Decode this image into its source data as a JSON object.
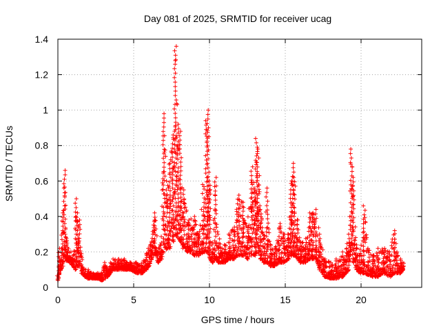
{
  "chart_data": {
    "type": "scatter",
    "title": "Day 081 of 2025, SRMTID for receiver ucag",
    "xlabel": "GPS time / hours",
    "ylabel": "SRMTID / TECUs",
    "xlim": [
      0,
      24
    ],
    "ylim": [
      0,
      1.4
    ],
    "xticks": [
      0,
      5,
      10,
      15,
      20
    ],
    "xtick_labels": [
      "0",
      "5",
      "10",
      "15",
      "20"
    ],
    "yticks": [
      0,
      0.2,
      0.4,
      0.6,
      0.8,
      1.0,
      1.2,
      1.4
    ],
    "ytick_labels": [
      "0",
      "0.2",
      "0.4",
      "0.6",
      "0.8",
      "1",
      "1.2",
      "1.4"
    ],
    "grid": true,
    "marker": "plus",
    "color": "#ff0000",
    "series": [
      {
        "name": "SRMTID",
        "envelope": {
          "x": [
            0.0,
            0.1,
            0.2,
            0.3,
            0.45,
            0.55,
            0.65,
            0.8,
            1.0,
            1.2,
            1.3,
            1.4,
            1.6,
            1.8,
            2.0,
            2.3,
            2.6,
            2.9,
            3.1,
            3.3,
            3.6,
            4.0,
            4.4,
            4.8,
            5.2,
            5.6,
            5.8,
            6.0,
            6.2,
            6.4,
            6.6,
            6.8,
            7.0,
            7.2,
            7.4,
            7.6,
            7.75,
            7.9,
            8.1,
            8.3,
            8.6,
            9.0,
            9.3,
            9.6,
            9.8,
            9.9,
            10.0,
            10.2,
            10.4,
            10.6,
            10.8,
            11.0,
            11.3,
            11.6,
            11.9,
            12.2,
            12.5,
            12.8,
            13.0,
            13.1,
            13.2,
            13.4,
            13.6,
            13.8,
            14.0,
            14.3,
            14.6,
            14.9,
            15.2,
            15.4,
            15.5,
            15.6,
            15.8,
            16.0,
            16.3,
            16.6,
            16.8,
            17.0,
            17.3,
            17.6,
            18.0,
            18.4,
            18.8,
            19.0,
            19.2,
            19.35,
            19.5,
            19.7,
            19.9,
            20.2,
            20.5,
            20.8,
            21.1,
            21.5,
            21.9,
            22.2,
            22.4,
            22.6,
            22.8
          ],
          "y": [
            0.12,
            0.22,
            0.18,
            0.42,
            0.66,
            0.3,
            0.24,
            0.2,
            0.16,
            0.5,
            0.42,
            0.38,
            0.12,
            0.1,
            0.1,
            0.08,
            0.08,
            0.08,
            0.14,
            0.1,
            0.16,
            0.16,
            0.16,
            0.14,
            0.14,
            0.14,
            0.18,
            0.22,
            0.3,
            0.42,
            0.22,
            0.24,
            0.98,
            0.6,
            0.72,
            0.86,
            1.36,
            0.92,
            0.88,
            0.55,
            0.38,
            0.4,
            0.3,
            0.58,
            0.94,
            1.0,
            0.6,
            0.24,
            0.62,
            0.3,
            0.22,
            0.24,
            0.3,
            0.34,
            0.52,
            0.48,
            0.34,
            0.68,
            0.56,
            0.84,
            0.78,
            0.44,
            0.3,
            0.56,
            0.26,
            0.2,
            0.36,
            0.3,
            0.3,
            0.6,
            0.7,
            0.62,
            0.38,
            0.28,
            0.24,
            0.42,
            0.42,
            0.44,
            0.3,
            0.16,
            0.14,
            0.16,
            0.2,
            0.22,
            0.3,
            0.78,
            0.62,
            0.24,
            0.18,
            0.46,
            0.22,
            0.18,
            0.22,
            0.22,
            0.2,
            0.32,
            0.2,
            0.16,
            0.14
          ],
          "low": [
            0.04,
            0.08,
            0.1,
            0.12,
            0.16,
            0.15,
            0.15,
            0.14,
            0.12,
            0.1,
            0.12,
            0.12,
            0.08,
            0.06,
            0.05,
            0.05,
            0.05,
            0.04,
            0.05,
            0.06,
            0.1,
            0.1,
            0.1,
            0.1,
            0.08,
            0.08,
            0.1,
            0.12,
            0.16,
            0.2,
            0.14,
            0.16,
            0.2,
            0.22,
            0.22,
            0.26,
            0.3,
            0.28,
            0.26,
            0.22,
            0.2,
            0.18,
            0.18,
            0.2,
            0.2,
            0.2,
            0.16,
            0.14,
            0.16,
            0.14,
            0.14,
            0.14,
            0.16,
            0.16,
            0.18,
            0.18,
            0.16,
            0.18,
            0.18,
            0.2,
            0.2,
            0.16,
            0.14,
            0.14,
            0.12,
            0.12,
            0.14,
            0.14,
            0.16,
            0.18,
            0.18,
            0.18,
            0.16,
            0.14,
            0.14,
            0.16,
            0.16,
            0.16,
            0.1,
            0.06,
            0.05,
            0.05,
            0.06,
            0.08,
            0.1,
            0.2,
            0.14,
            0.1,
            0.08,
            0.08,
            0.07,
            0.06,
            0.06,
            0.08,
            0.06,
            0.08,
            0.08,
            0.08,
            0.1
          ]
        }
      }
    ]
  }
}
